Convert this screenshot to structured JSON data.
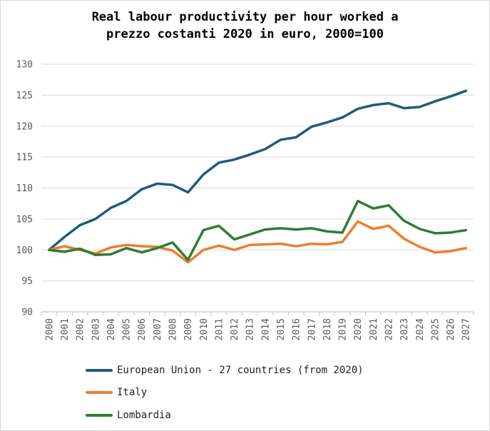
{
  "chart_data": {
    "type": "line",
    "title": "Real labour productivity per hour worked a prezzo costanti 2020 in euro, 2000=100",
    "title_lines": [
      "Real labour productivity per hour worked a",
      "prezzo costanti 2020 in euro, 2000=100"
    ],
    "xlabel": "",
    "ylabel": "",
    "ylim": [
      90,
      130
    ],
    "yticks": [
      90,
      95,
      100,
      105,
      110,
      115,
      120,
      125,
      130
    ],
    "categories": [
      "2000",
      "2001",
      "2002",
      "2003",
      "2004",
      "2005",
      "2006",
      "2007",
      "2008",
      "2009",
      "2010",
      "2011",
      "2012",
      "2013",
      "2014",
      "2015",
      "2016",
      "2017",
      "2018",
      "2019",
      "2020",
      "2021",
      "2022",
      "2023",
      "2024",
      "2025",
      "2026",
      "2027"
    ],
    "grid": true,
    "legend_position": "bottom",
    "series": [
      {
        "name": "European Union - 27 countries (from 2020)",
        "color": "#1f5c7a",
        "values": [
          100,
          102.1,
          104,
          105,
          106.8,
          107.9,
          109.8,
          110.7,
          110.5,
          109.3,
          112.2,
          114.1,
          114.6,
          115.4,
          116.3,
          117.8,
          118.2,
          119.9,
          120.6,
          121.4,
          122.8,
          123.4,
          123.7,
          122.9,
          123.1,
          124,
          124.8,
          125.7
        ]
      },
      {
        "name": "Italy",
        "color": "#ed7d31",
        "values": [
          100,
          100.6,
          100,
          99.4,
          100.4,
          100.8,
          100.6,
          100.5,
          99.9,
          98,
          100,
          100.7,
          100,
          100.8,
          100.9,
          101,
          100.6,
          101,
          100.9,
          101.3,
          104.6,
          103.4,
          103.9,
          101.8,
          100.5,
          99.6,
          99.8,
          100.3
        ]
      },
      {
        "name": "Lombardia",
        "color": "#2e7d32",
        "values": [
          100,
          99.7,
          100.2,
          99.2,
          99.3,
          100.3,
          99.6,
          100.3,
          101.2,
          98.4,
          103.2,
          103.9,
          101.7,
          102.5,
          103.3,
          103.5,
          103.3,
          103.5,
          103,
          102.8,
          107.9,
          106.7,
          107.2,
          104.7,
          103.4,
          102.7,
          102.8,
          103.2
        ]
      }
    ]
  }
}
